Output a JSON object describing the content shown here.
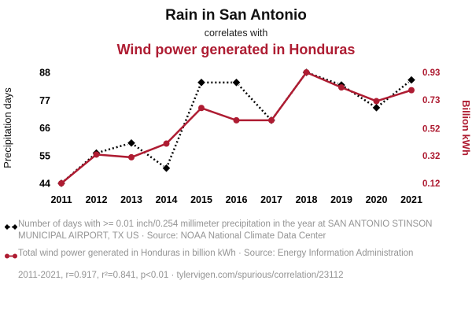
{
  "theme": {
    "accent": "#ae1c32",
    "legend_text_color": "#949494",
    "series1_color": "#000000"
  },
  "header": {
    "title": "Rain in San Antonio",
    "connector": "correlates with",
    "subtitle": "Wind power generated in Honduras"
  },
  "chart_data": {
    "type": "line",
    "x_ticks": [
      "2011",
      "2012",
      "2013",
      "2014",
      "2015",
      "2016",
      "2017",
      "2018",
      "2019",
      "2020",
      "2021"
    ],
    "left_axis": {
      "label": "Precipitation days",
      "ticks": [
        44,
        55,
        66,
        77,
        88
      ],
      "range": [
        44,
        88
      ]
    },
    "right_axis": {
      "label": "Billion kWh",
      "ticks": [
        "0.12",
        "0.32",
        "0.52",
        "0.73",
        "0.93"
      ],
      "range": [
        0.12,
        0.93
      ],
      "color": "#ae1c32"
    },
    "series": [
      {
        "name": "Precipitation days at San Antonio",
        "axis": "left",
        "color": "#000000",
        "style": "dotted",
        "marker": "diamond",
        "values": [
          44,
          56,
          60,
          50,
          84,
          84,
          69,
          88,
          83,
          74,
          85
        ]
      },
      {
        "name": "Wind power generated in Honduras (billion kWh)",
        "axis": "right",
        "color": "#ae1c32",
        "style": "solid",
        "marker": "circle",
        "values": [
          0.12,
          0.33,
          0.31,
          0.41,
          0.67,
          0.58,
          0.58,
          0.93,
          0.82,
          0.72,
          0.8
        ]
      }
    ],
    "grid": false,
    "legend_position": "bottom"
  },
  "legend": {
    "rows": [
      {
        "text": "Number of days with >= 0.01 inch/0.254 millimeter precipitation in the year at SAN ANTONIO STINSON MUNICIPAL AIRPORT, TX US · Source: NOAA National Climate Data Center"
      },
      {
        "text": "Total wind power generated in Honduras in billion kWh · Source: Energy Information Administration"
      }
    ],
    "footer": "2011-2021, r=0.917, r²=0.841, p<0.01 · tylervigen.com/spurious/correlation/23112"
  }
}
